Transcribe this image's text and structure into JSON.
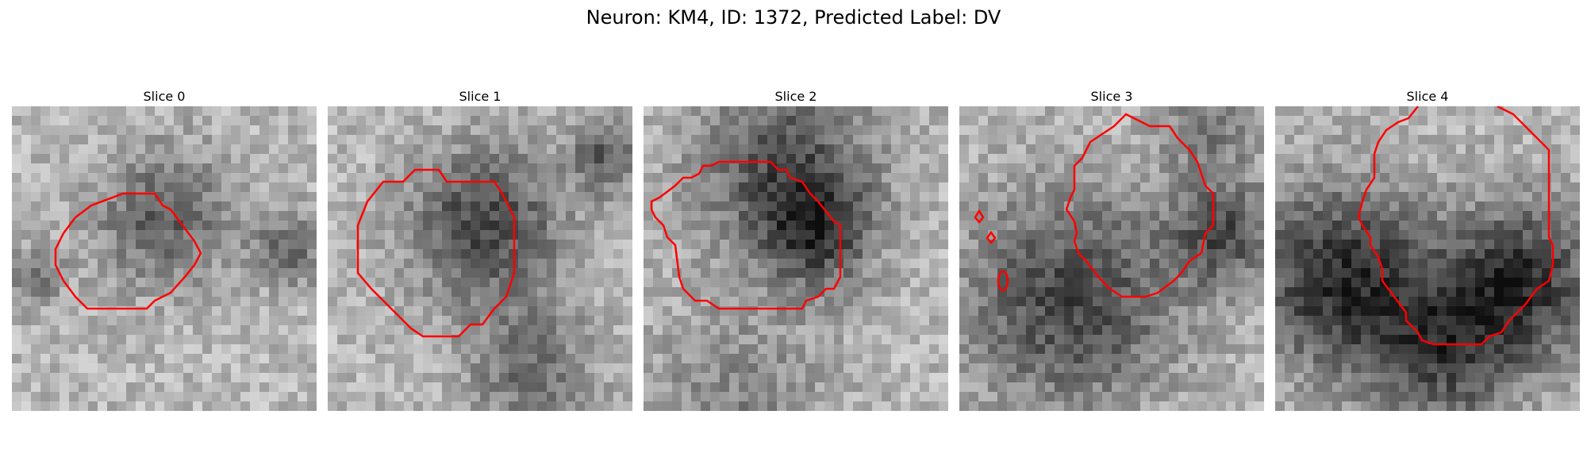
{
  "figure": {
    "title": "Neuron: KM4, ID: 1372, Predicted Label: DV"
  },
  "panels": [
    {
      "title": "Slice 0",
      "contour_color": "#ff0000"
    },
    {
      "title": "Slice 1",
      "contour_color": "#ff0000"
    },
    {
      "title": "Slice 2",
      "contour_color": "#ff0000"
    },
    {
      "title": "Slice 3",
      "contour_color": "#ff0000"
    },
    {
      "title": "Slice 4",
      "contour_color": "#ff0000"
    }
  ]
}
